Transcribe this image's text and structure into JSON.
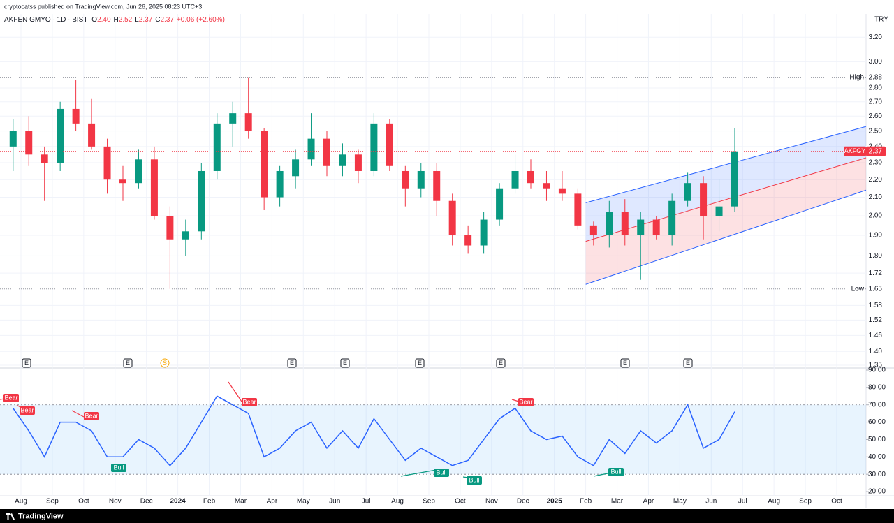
{
  "header": "cryptocatss published on TradingView.com, Jun 26, 2025 08:23 UTC+3",
  "footer": "TradingView",
  "chart_data": {
    "type": "candlestick",
    "title": "AKFEN GMYO · 1D · BIST",
    "legend": [
      {
        "key": "O",
        "value": "2.40"
      },
      {
        "key": "H",
        "value": "2.52"
      },
      {
        "key": "L",
        "value": "2.37"
      },
      {
        "key": "C",
        "value": "2.37"
      }
    ],
    "change": "+0.06 (+2.60%)",
    "currency": "TRY",
    "categories": [
      null,
      "Aug",
      null,
      "Sep",
      null,
      "Oct",
      null,
      "Nov",
      null,
      "Dec",
      null,
      "2024",
      null,
      "Feb",
      null,
      "Mar",
      null,
      "Apr",
      null,
      "May",
      null,
      "Jun",
      null,
      "Jul",
      null,
      "Aug",
      null,
      "Sep",
      null,
      "Oct",
      null,
      "Nov",
      null,
      "Dec",
      null,
      "2025",
      null,
      "Feb",
      null,
      "Mar",
      null,
      "Apr",
      null,
      "May",
      null,
      "Jun",
      null,
      "Jul",
      null,
      "Aug",
      null,
      "Sep",
      null,
      "Oct",
      null
    ],
    "open": [
      2.4,
      2.5,
      2.35,
      2.3,
      2.65,
      2.55,
      2.4,
      2.2,
      2.18,
      2.32,
      2.0,
      1.88,
      1.92,
      2.25,
      2.55,
      2.62,
      2.5,
      2.1,
      2.22,
      2.32,
      2.45,
      2.28,
      2.35,
      2.25,
      2.55,
      2.25,
      2.15,
      2.25,
      2.08,
      1.9,
      1.85,
      1.98,
      2.15,
      2.25,
      2.18,
      2.15,
      2.12,
      1.95,
      1.9,
      2.02,
      1.9,
      1.98,
      1.9,
      2.08,
      2.18,
      2.0,
      2.05,
      null,
      null,
      null,
      null,
      null,
      null,
      null,
      null
    ],
    "high": [
      2.58,
      2.6,
      2.4,
      2.7,
      2.86,
      2.72,
      2.45,
      2.28,
      2.38,
      2.4,
      2.05,
      1.98,
      2.3,
      2.62,
      2.7,
      2.88,
      2.52,
      2.28,
      2.38,
      2.62,
      2.5,
      2.42,
      2.38,
      2.62,
      2.58,
      2.28,
      2.3,
      2.3,
      2.12,
      1.95,
      2.02,
      2.18,
      2.35,
      2.32,
      2.25,
      2.25,
      2.15,
      1.97,
      2.08,
      2.09,
      2.02,
      2.0,
      2.12,
      2.24,
      2.22,
      2.2,
      2.52,
      null,
      null,
      null,
      null,
      null,
      null,
      null,
      null
    ],
    "low": [
      2.25,
      2.28,
      2.08,
      2.25,
      2.5,
      2.38,
      2.12,
      2.08,
      2.15,
      1.98,
      1.65,
      1.8,
      1.88,
      2.2,
      2.4,
      2.45,
      2.03,
      2.05,
      2.15,
      2.28,
      2.22,
      2.22,
      2.18,
      2.22,
      2.25,
      2.05,
      2.1,
      2.0,
      1.85,
      1.81,
      1.81,
      1.95,
      2.12,
      2.15,
      2.08,
      2.08,
      1.93,
      1.85,
      1.84,
      1.85,
      1.69,
      1.88,
      1.85,
      2.05,
      1.88,
      1.92,
      2.02,
      null,
      null,
      null,
      null,
      null,
      null,
      null,
      null
    ],
    "close": [
      2.5,
      2.35,
      2.3,
      2.65,
      2.55,
      2.4,
      2.2,
      2.18,
      2.32,
      2.0,
      1.88,
      1.92,
      2.25,
      2.55,
      2.62,
      2.5,
      2.1,
      2.25,
      2.32,
      2.45,
      2.28,
      2.35,
      2.25,
      2.55,
      2.28,
      2.15,
      2.25,
      2.08,
      1.9,
      1.85,
      1.98,
      2.15,
      2.25,
      2.18,
      2.15,
      2.12,
      1.95,
      1.9,
      2.02,
      1.9,
      1.98,
      1.9,
      2.08,
      2.18,
      2.0,
      2.05,
      2.37,
      null,
      null,
      null,
      null,
      null,
      null,
      null,
      null
    ],
    "up_color": "#089981",
    "down_color": "#f23645",
    "ylim": [
      1.345,
      3.34
    ],
    "log": true,
    "grid": true,
    "yticks": [
      {
        "value": 3.2,
        "label": "3.20"
      },
      {
        "value": 3.0,
        "label": "3.00"
      },
      {
        "value": 2.8,
        "label": "2.80"
      },
      {
        "value": 2.7,
        "label": "2.70"
      },
      {
        "value": 2.6,
        "label": "2.60"
      },
      {
        "value": 2.5,
        "label": "2.50"
      },
      {
        "value": 2.4,
        "label": "2.40"
      },
      {
        "value": 2.3,
        "label": "2.30"
      },
      {
        "value": 2.2,
        "label": "2.20"
      },
      {
        "value": 2.1,
        "label": "2.10"
      },
      {
        "value": 2.0,
        "label": "2.00"
      },
      {
        "value": 1.9,
        "label": "1.90"
      },
      {
        "value": 1.8,
        "label": "1.80"
      },
      1.72,
      1.58,
      1.52,
      1.46,
      {
        "value": 1.4,
        "label": "1.40"
      },
      1.35
    ],
    "high_line": {
      "label": "High",
      "value": 2.88
    },
    "low_line": {
      "label": "Low",
      "value": 1.65
    },
    "last_price": {
      "label": "AKFGY",
      "value": 2.37
    },
    "channel": {
      "upper": [
        2.07,
        2.53
      ],
      "middle": [
        1.87,
        2.33
      ],
      "lower": [
        1.67,
        2.14
      ]
    },
    "events": [
      "E",
      "E",
      "S",
      "E",
      "E",
      "E",
      "E",
      "E",
      "E"
    ],
    "rsi": {
      "values": [
        68,
        55,
        40,
        60,
        60,
        55,
        40,
        40,
        50,
        45,
        35,
        45,
        60,
        75,
        70,
        65,
        40,
        45,
        55,
        60,
        45,
        55,
        45,
        62,
        50,
        38,
        45,
        40,
        35,
        38,
        50,
        62,
        68,
        55,
        50,
        52,
        40,
        35,
        50,
        42,
        55,
        48,
        55,
        70,
        45,
        50,
        66,
        null,
        null,
        null,
        null,
        null,
        null,
        null,
        null
      ],
      "color": "#2962ff",
      "ylim": [
        17.6,
        90.8
      ],
      "band": [
        30,
        70
      ],
      "yticks": [
        {
          "value": 90,
          "label": "90.00"
        },
        {
          "value": 80,
          "label": "80.00"
        },
        {
          "value": 70,
          "label": "70.00"
        },
        {
          "value": 60,
          "label": "60.00"
        },
        {
          "value": 50,
          "label": "50.00"
        },
        {
          "value": 40,
          "label": "40.00"
        },
        {
          "value": 30,
          "label": "30.00"
        },
        {
          "value": 20,
          "label": "20.00"
        }
      ],
      "divergences": [
        "Bear",
        "Bear",
        "Bear",
        "Bull",
        "Bear",
        "Bull",
        "Bull",
        "Bear",
        "Bull"
      ]
    }
  }
}
